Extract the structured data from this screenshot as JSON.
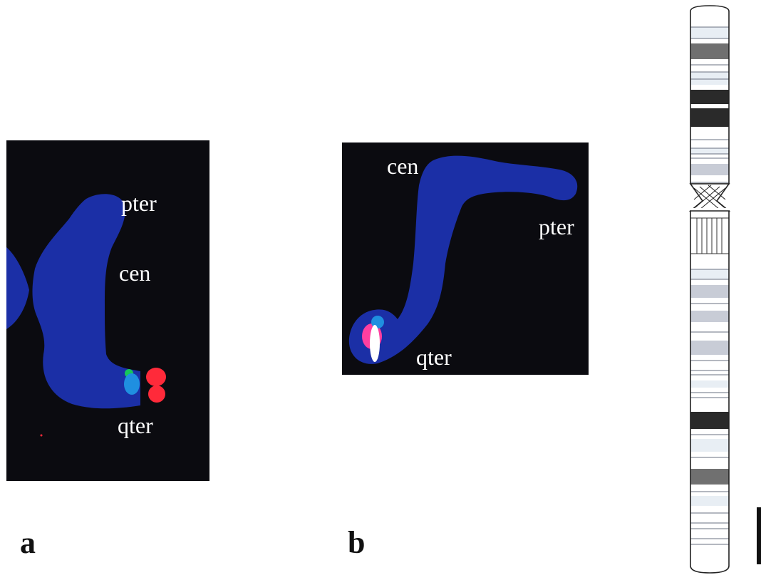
{
  "panel_a": {
    "letter": "a",
    "labels": {
      "pter": "pter",
      "cen": "cen",
      "qter": "qter"
    }
  },
  "panel_b": {
    "letter": "b",
    "labels": {
      "cen": "cen",
      "pter": "pter",
      "qter": "qter"
    }
  },
  "colors": {
    "background": "#0b0b10",
    "chromosome": "#1b2fa6",
    "probe_red": "#ff2a3a",
    "probe_blue": "#1f8fe0",
    "probe_green": "#16c65a",
    "probe_white": "#ffffff",
    "probe_pink": "#ff3fa0",
    "ideogram_dark": "#2a2a2a",
    "ideogram_mid": "#707070",
    "ideogram_light": "#c8ccd6",
    "ideogram_pale": "#e8eef4"
  }
}
